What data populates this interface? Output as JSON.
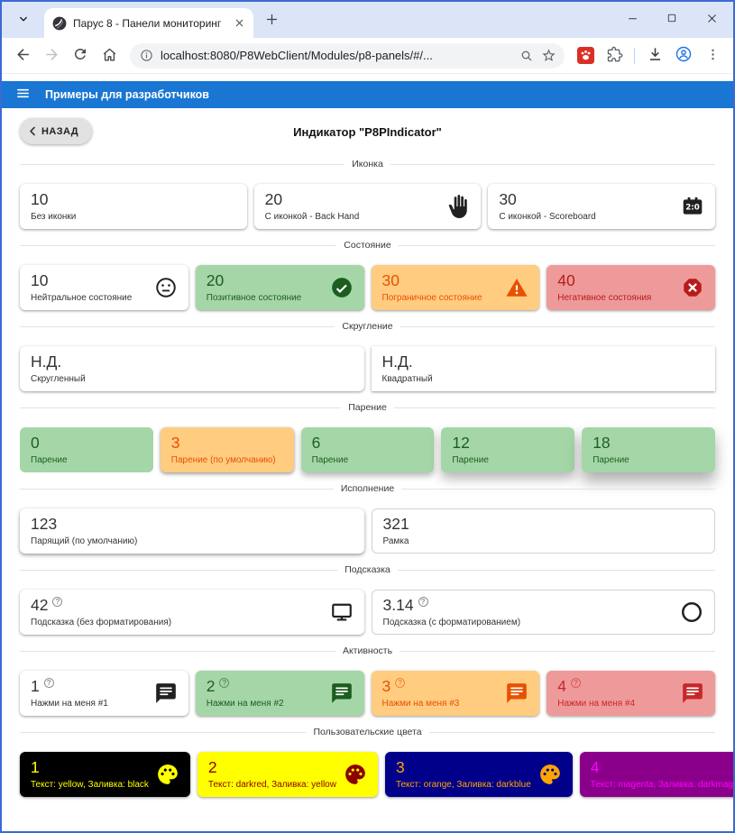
{
  "browser": {
    "tab_title": "Парус 8 - Панели мониторинг",
    "url": "localhost:8080/P8WebClient/Modules/p8-panels/#/...",
    "tab_icons": [
      "tab-search-chevron",
      "globe-favicon",
      "tab-close",
      "new-tab-plus",
      "window-minimize",
      "window-maximize",
      "window-close"
    ],
    "toolbar_icons": [
      "back-arrow",
      "forward-arrow",
      "reload",
      "home",
      "page-info",
      "zoom-magnifier",
      "bookmark-star",
      "red-extension",
      "extensions-puzzle",
      "download",
      "profile",
      "menu-kebab"
    ]
  },
  "app": {
    "appbar_title": "Примеры для разработчиков",
    "back_label": "НАЗАД",
    "page_title": "Индикатор \"P8PIndicator\"",
    "accent_color": "#1976d2"
  },
  "sections": [
    {
      "label": "Иконка",
      "columns": 3,
      "cards": [
        {
          "value": "10",
          "label": "Без иконки",
          "bg": "#ffffff",
          "fg": "#333333",
          "elevation": 2
        },
        {
          "value": "20",
          "label": "С иконкой - Back Hand",
          "icon": "back-hand",
          "icon_color": "#212121",
          "bg": "#ffffff",
          "fg": "#333333",
          "elevation": 2
        },
        {
          "value": "30",
          "label": "С иконкой - Scoreboard",
          "icon": "scoreboard",
          "icon_color": "#212121",
          "bg": "#ffffff",
          "fg": "#333333",
          "elevation": 2
        }
      ]
    },
    {
      "label": "Состояние",
      "columns": 4,
      "cards": [
        {
          "value": "10",
          "label": "Нейтральное состояние",
          "icon": "sentiment-neutral",
          "icon_color": "#212121",
          "bg": "#ffffff",
          "fg": "#333333",
          "elevation": 2
        },
        {
          "value": "20",
          "label": "Позитивное состояние",
          "icon": "check-circle",
          "icon_color": "#1b5e20",
          "bg": "#a5d6a7",
          "fg": "#1b5e20",
          "elevation": 2
        },
        {
          "value": "30",
          "label": "Пограничное состояние",
          "icon": "warning",
          "icon_color": "#e65100",
          "bg": "#ffcc80",
          "fg": "#e65100",
          "elevation": 2
        },
        {
          "value": "40",
          "label": "Негативное состояния",
          "icon": "cancel",
          "icon_color": "#b71c1c",
          "bg": "#ef9a9a",
          "fg": "#b71c1c",
          "elevation": 2
        }
      ]
    },
    {
      "label": "Скругление",
      "columns": 2,
      "cards": [
        {
          "value": "Н.Д.",
          "label": "Скругленный",
          "bg": "#ffffff",
          "fg": "#333333",
          "elevation": 2
        },
        {
          "value": "Н.Д.",
          "label": "Квадратный",
          "bg": "#ffffff",
          "fg": "#333333",
          "elevation": 2,
          "square": true
        }
      ]
    },
    {
      "label": "Парение",
      "columns": 5,
      "cards": [
        {
          "value": "0",
          "label": "Парение",
          "bg": "#a5d6a7",
          "fg": "#1b5e20",
          "elevation": 0
        },
        {
          "value": "3",
          "label": "Парение (по умолчанию)",
          "bg": "#ffcc80",
          "fg": "#e65100",
          "elevation": 3
        },
        {
          "value": "6",
          "label": "Парение",
          "bg": "#a5d6a7",
          "fg": "#1b5e20",
          "elevation": 6
        },
        {
          "value": "12",
          "label": "Парение",
          "bg": "#a5d6a7",
          "fg": "#1b5e20",
          "elevation": 12
        },
        {
          "value": "18",
          "label": "Парение",
          "bg": "#a5d6a7",
          "fg": "#1b5e20",
          "elevation": 18
        }
      ]
    },
    {
      "label": "Исполнение",
      "columns": 2,
      "cards": [
        {
          "value": "123",
          "label": "Парящий (по умолчанию)",
          "bg": "#ffffff",
          "fg": "#333333",
          "elevation": 3
        },
        {
          "value": "321",
          "label": "Рамка",
          "bg": "#ffffff",
          "fg": "#333333",
          "variant": "outlined"
        }
      ]
    },
    {
      "label": "Подсказка",
      "columns": 2,
      "cards": [
        {
          "value": "42",
          "help": true,
          "label": "Подсказка (без форматирования)",
          "icon": "monitor",
          "icon_color": "#212121",
          "bg": "#ffffff",
          "fg": "#333333",
          "elevation": 2
        },
        {
          "value": "3.14",
          "help": true,
          "label": "Подсказка (с форматированием)",
          "icon": "circle",
          "icon_color": "#212121",
          "bg": "#ffffff",
          "fg": "#333333",
          "variant": "outlined"
        }
      ]
    },
    {
      "label": "Активность",
      "columns": 4,
      "cards": [
        {
          "value": "1",
          "help": true,
          "label": "Нажми на меня #1",
          "icon": "message",
          "icon_color": "#212121",
          "bg": "#ffffff",
          "fg": "#333333",
          "elevation": 2
        },
        {
          "value": "2",
          "help": true,
          "label": "Нажми на меня #2",
          "icon": "message",
          "icon_color": "#1b5e20",
          "bg": "#a5d6a7",
          "fg": "#1b5e20",
          "elevation": 2
        },
        {
          "value": "3",
          "help": true,
          "label": "Нажми на меня #3",
          "icon": "message",
          "icon_color": "#e65100",
          "bg": "#ffcc80",
          "fg": "#e65100",
          "elevation": 2
        },
        {
          "value": "4",
          "help": true,
          "label": "Нажми на меня #4",
          "icon": "message",
          "icon_color": "#c62828",
          "bg": "#ef9a9a",
          "fg": "#c62828",
          "elevation": 2
        }
      ]
    },
    {
      "label": "Пользовательские цвета",
      "columns": 4,
      "cards": [
        {
          "value": "1",
          "label": "Текст: yellow, Заливка: black",
          "icon": "palette",
          "icon_color": "#ffff00",
          "bg": "#000000",
          "fg": "#ffff00",
          "elevation": 2
        },
        {
          "value": "2",
          "label": "Текст: darkred, Заливка: yellow",
          "icon": "palette",
          "icon_color": "#8b0000",
          "bg": "#ffff00",
          "fg": "#8b0000",
          "elevation": 2
        },
        {
          "value": "3",
          "label": "Текст: orange, Заливка: darkblue",
          "icon": "palette",
          "icon_color": "#ffa500",
          "bg": "#00008b",
          "fg": "#ffa500",
          "elevation": 2
        },
        {
          "value": "4",
          "label": "Текст: magenta, Заливка: darkmage...",
          "icon": "palette",
          "icon_color": "#ff00ff",
          "bg": "#8b008b",
          "fg": "#ff00ff",
          "elevation": 2
        }
      ]
    }
  ]
}
